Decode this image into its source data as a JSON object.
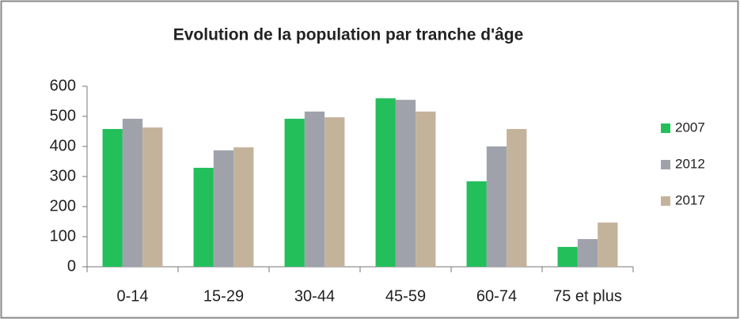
{
  "chart_data": {
    "type": "bar",
    "title": "Evolution de la population par tranche d'âge",
    "categories": [
      "0-14",
      "15-29",
      "30-44",
      "45-59",
      "60-74",
      "75 et plus"
    ],
    "series": [
      {
        "name": "2007",
        "color": "#22bf5b",
        "values": [
          458,
          329,
          492,
          560,
          284,
          66
        ]
      },
      {
        "name": "2012",
        "color": "#a0a2ab",
        "values": [
          492,
          387,
          516,
          555,
          400,
          92
        ]
      },
      {
        "name": "2017",
        "color": "#c4b39b",
        "values": [
          463,
          397,
          497,
          516,
          458,
          147
        ]
      }
    ],
    "ylim": [
      0,
      600
    ],
    "yticks": [
      0,
      100,
      200,
      300,
      400,
      500,
      600
    ],
    "grid": false,
    "legend": "right"
  }
}
